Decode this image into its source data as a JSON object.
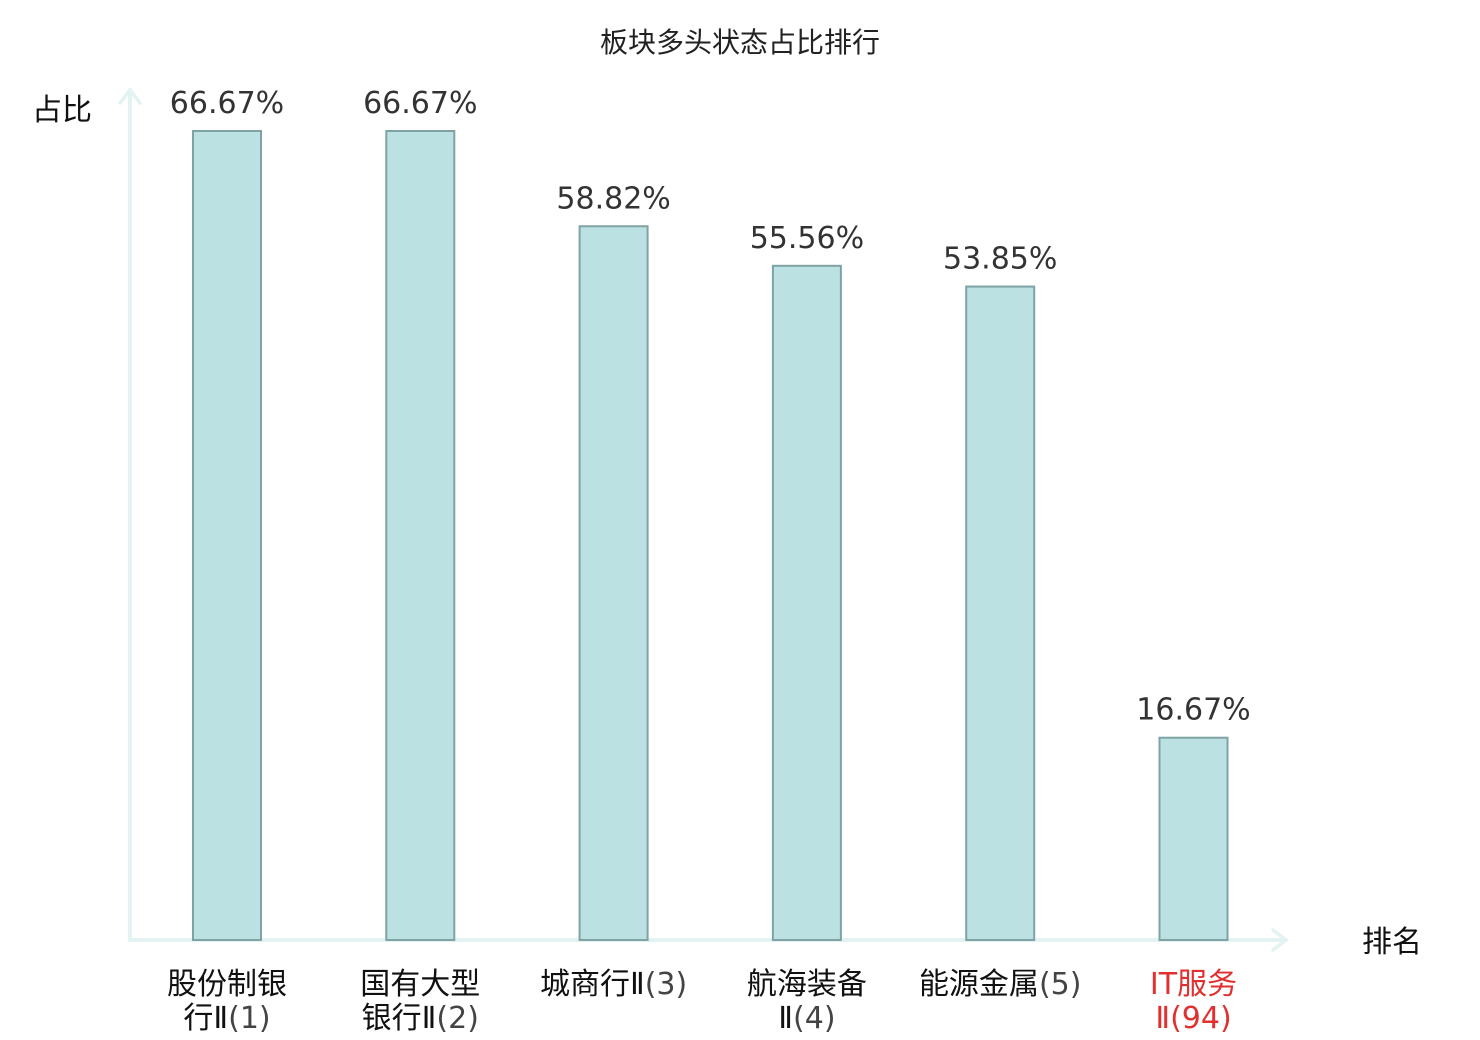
{
  "chart_data": {
    "type": "bar",
    "title": "板块多头状态占比排行",
    "ylabel": "占比",
    "xlabel": "排名",
    "ylim": [
      0,
      70
    ],
    "grid": false,
    "legend": "none",
    "bar_color": "#bce1e3",
    "bar_edge_color": "#7fa3a5",
    "axis_color": "#e3f3f1",
    "highlight_color": "#e03030",
    "categories": [
      {
        "name_lines": [
          "股份制银",
          "行Ⅱ"
        ],
        "rank": "(1)",
        "highlight": false
      },
      {
        "name_lines": [
          "国有大型",
          "银行Ⅱ"
        ],
        "rank": "(2)",
        "highlight": false
      },
      {
        "name_lines": [
          "城商行Ⅱ"
        ],
        "rank": "(3)",
        "highlight": false
      },
      {
        "name_lines": [
          "航海装备",
          "Ⅱ"
        ],
        "rank": "(4)",
        "highlight": false
      },
      {
        "name_lines": [
          "能源金属"
        ],
        "rank": "(5)",
        "highlight": false
      },
      {
        "name_lines": [
          "IT服务",
          "Ⅱ"
        ],
        "rank": "(94)",
        "highlight": true
      }
    ],
    "values": [
      66.67,
      66.67,
      58.82,
      55.56,
      53.85,
      16.67
    ],
    "value_labels": [
      "66.67%",
      "66.67%",
      "58.82%",
      "55.56%",
      "53.85%",
      "16.67%"
    ]
  }
}
